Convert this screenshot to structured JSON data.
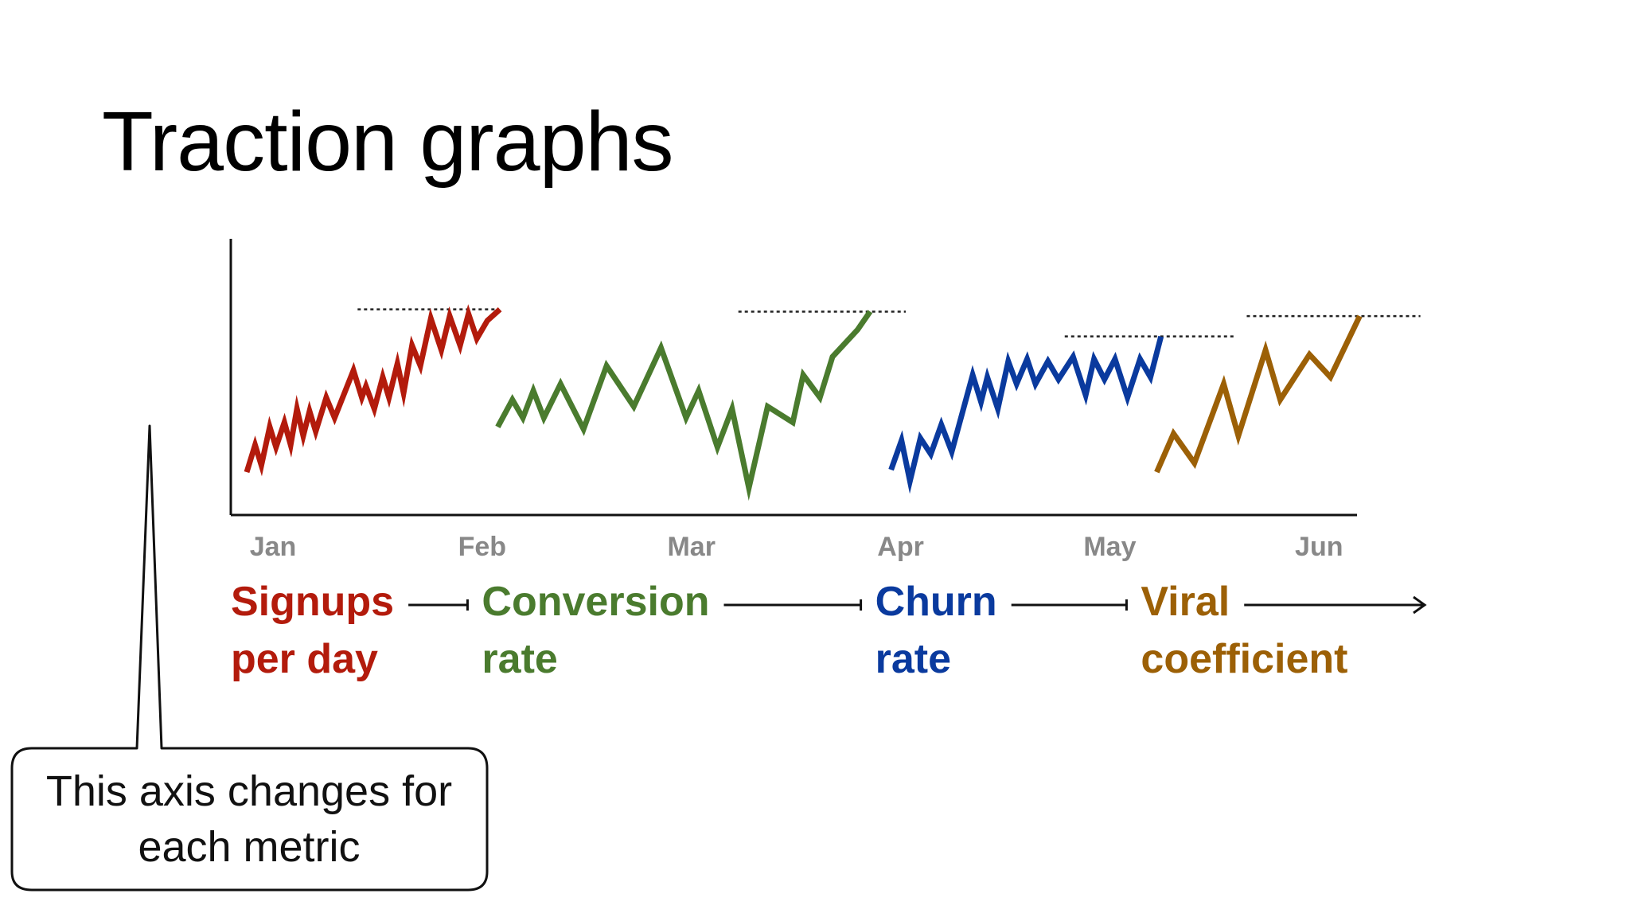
{
  "slide": {
    "title": "Traction graphs"
  },
  "callout": {
    "lines": [
      "This axis changes for",
      "each metric"
    ]
  },
  "chart_data": {
    "type": "line",
    "title": "",
    "xlabel": "",
    "ylabel": "",
    "x_ticks": [
      "Jan",
      "Feb",
      "Mar",
      "Apr",
      "May",
      "Jun"
    ],
    "x_range": [
      0.0,
      5.25
    ],
    "y_range": [
      0,
      100
    ],
    "grid": false,
    "legend": "none",
    "series": [
      {
        "label_lines": [
          "Signups",
          "per day"
        ],
        "color": "#b31b0c",
        "target": 85,
        "target_x": [
          0.53,
          1.2
        ],
        "points": [
          [
            0.0,
            13
          ],
          [
            0.04,
            25
          ],
          [
            0.07,
            16
          ],
          [
            0.11,
            33
          ],
          [
            0.14,
            24
          ],
          [
            0.18,
            35
          ],
          [
            0.21,
            25
          ],
          [
            0.24,
            41
          ],
          [
            0.27,
            29
          ],
          [
            0.3,
            40
          ],
          [
            0.33,
            31
          ],
          [
            0.38,
            46
          ],
          [
            0.42,
            37
          ],
          [
            0.51,
            58
          ],
          [
            0.55,
            46
          ],
          [
            0.57,
            51
          ],
          [
            0.61,
            41
          ],
          [
            0.65,
            55
          ],
          [
            0.68,
            46
          ],
          [
            0.72,
            61
          ],
          [
            0.75,
            48
          ],
          [
            0.79,
            69
          ],
          [
            0.83,
            60
          ],
          [
            0.88,
            81
          ],
          [
            0.93,
            67
          ],
          [
            0.97,
            82
          ],
          [
            1.02,
            69
          ],
          [
            1.06,
            83
          ],
          [
            1.1,
            72
          ],
          [
            1.15,
            80
          ],
          [
            1.21,
            85
          ]
        ]
      },
      {
        "label_lines": [
          "Conversion",
          "rate"
        ],
        "color": "#4a7b2e",
        "target": 84,
        "target_x": [
          2.35,
          3.15
        ],
        "points": [
          [
            1.2,
            33
          ],
          [
            1.27,
            45
          ],
          [
            1.32,
            37
          ],
          [
            1.37,
            49
          ],
          [
            1.42,
            37
          ],
          [
            1.5,
            52
          ],
          [
            1.61,
            32
          ],
          [
            1.72,
            60
          ],
          [
            1.85,
            42
          ],
          [
            1.98,
            68
          ],
          [
            2.1,
            37
          ],
          [
            2.16,
            49
          ],
          [
            2.25,
            24
          ],
          [
            2.32,
            41
          ],
          [
            2.4,
            6
          ],
          [
            2.49,
            42
          ],
          [
            2.61,
            35
          ],
          [
            2.66,
            56
          ],
          [
            2.74,
            46
          ],
          [
            2.8,
            64
          ],
          [
            2.92,
            76
          ],
          [
            2.98,
            84
          ]
        ]
      },
      {
        "label_lines": [
          "Churn",
          "rate"
        ],
        "color": "#0a3a9e",
        "target": 73,
        "target_x": [
          3.91,
          4.72
        ],
        "points": [
          [
            3.08,
            14
          ],
          [
            3.13,
            27
          ],
          [
            3.17,
            9
          ],
          [
            3.22,
            28
          ],
          [
            3.27,
            21
          ],
          [
            3.32,
            34
          ],
          [
            3.37,
            22
          ],
          [
            3.47,
            56
          ],
          [
            3.51,
            44
          ],
          [
            3.54,
            55
          ],
          [
            3.59,
            41
          ],
          [
            3.64,
            62
          ],
          [
            3.68,
            52
          ],
          [
            3.73,
            63
          ],
          [
            3.77,
            52
          ],
          [
            3.83,
            62
          ],
          [
            3.88,
            54
          ],
          [
            3.95,
            64
          ],
          [
            4.01,
            47
          ],
          [
            4.05,
            63
          ],
          [
            4.1,
            54
          ],
          [
            4.15,
            63
          ],
          [
            4.21,
            46
          ],
          [
            4.27,
            63
          ],
          [
            4.32,
            55
          ],
          [
            4.37,
            73
          ]
        ]
      },
      {
        "label_lines": [
          "Viral",
          "coefficient"
        ],
        "color": "#9c6006",
        "target": 82,
        "target_x": [
          4.78,
          5.61
        ],
        "points": [
          [
            4.35,
            13
          ],
          [
            4.43,
            30
          ],
          [
            4.53,
            17
          ],
          [
            4.67,
            52
          ],
          [
            4.74,
            29
          ],
          [
            4.87,
            67
          ],
          [
            4.94,
            45
          ],
          [
            5.08,
            65
          ],
          [
            5.18,
            55
          ],
          [
            5.32,
            82
          ]
        ]
      }
    ]
  }
}
